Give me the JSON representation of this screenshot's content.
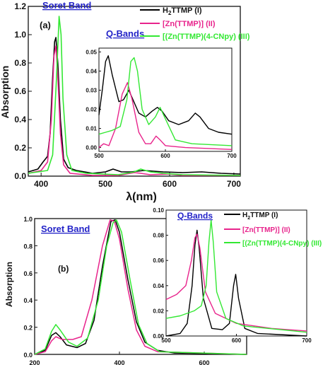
{
  "colors": {
    "black": "#000000",
    "magenta": "#e8248c",
    "green": "#33e833",
    "band_label": "#2323c8"
  },
  "panel_a": {
    "tag": "(a)",
    "soret_label": "Soret Band",
    "qbands_label": "Q-Bands",
    "legend": [
      {
        "prefix": "H",
        "sub": "2",
        "rest": "TTMP (I)",
        "color": "#000000"
      },
      {
        "text": "[Zn(TTMP)]  (II)",
        "color": "#e8248c"
      },
      {
        "text": "[(Zn(TTMP)(4-CNpy)  (III)",
        "color": "#33e833"
      }
    ]
  },
  "panel_b": {
    "tag": "(b)",
    "soret_label": "Soret Band",
    "qbands_label": "Q-Bands",
    "legend": [
      {
        "prefix": "H",
        "sub": "2",
        "rest": "TTMP (I)",
        "color": "#000000"
      },
      {
        "text": "[Zn(TTMP)]  (II)",
        "color": "#e8248c"
      },
      {
        "text": "[(Zn(TTMP)(4-CNpy)  (III)",
        "color": "#33e833"
      }
    ]
  },
  "chart_data": [
    {
      "id": "a-main",
      "type": "line",
      "xlabel": "λ(nm)",
      "ylabel": "Absorption",
      "xlim": [
        380,
        710
      ],
      "ylim": [
        0,
        1.2
      ],
      "xticks": [
        400,
        500,
        600,
        700
      ],
      "yticks": [
        0.0,
        0.2,
        0.4,
        0.6,
        0.8,
        1.0,
        1.2
      ],
      "ytick_labels": [
        "0.0",
        "0.2",
        "0.4",
        "0.6",
        "0.8",
        "1.0",
        "1.2"
      ],
      "series": [
        {
          "name": "H2TTMP (I)",
          "color": "#000000",
          "points": [
            [
              380,
              0.03
            ],
            [
              395,
              0.05
            ],
            [
              403,
              0.1
            ],
            [
              410,
              0.14
            ],
            [
              414,
              0.3
            ],
            [
              418,
              0.7
            ],
            [
              421,
              0.95
            ],
            [
              423,
              0.98
            ],
            [
              426,
              0.8
            ],
            [
              430,
              0.4
            ],
            [
              435,
              0.12
            ],
            [
              442,
              0.06
            ],
            [
              455,
              0.04
            ],
            [
              480,
              0.02
            ],
            [
              500,
              0.03
            ],
            [
              512,
              0.05
            ],
            [
              525,
              0.03
            ],
            [
              540,
              0.03
            ],
            [
              560,
              0.04
            ],
            [
              590,
              0.03
            ],
            [
              620,
              0.025
            ],
            [
              650,
              0.03
            ],
            [
              680,
              0.02
            ],
            [
              710,
              0.015
            ]
          ]
        },
        {
          "name": "[Zn(TTMP)] (II)",
          "color": "#e8248c",
          "points": [
            [
              380,
              0.02
            ],
            [
              400,
              0.04
            ],
            [
              410,
              0.1
            ],
            [
              416,
              0.4
            ],
            [
              420,
              0.85
            ],
            [
              423,
              0.92
            ],
            [
              426,
              0.7
            ],
            [
              430,
              0.3
            ],
            [
              435,
              0.08
            ],
            [
              445,
              0.02
            ],
            [
              480,
              0.005
            ],
            [
              520,
              0.005
            ],
            [
              545,
              0.025
            ],
            [
              555,
              0.02
            ],
            [
              570,
              0.01
            ],
            [
              600,
              0.015
            ],
            [
              620,
              0.005
            ],
            [
              710,
              0.005
            ]
          ]
        },
        {
          "name": "[(Zn(TTMP)(4-CNpy) (III)",
          "color": "#33e833",
          "points": [
            [
              380,
              0.02
            ],
            [
              410,
              0.04
            ],
            [
              418,
              0.15
            ],
            [
              424,
              0.7
            ],
            [
              428,
              1.13
            ],
            [
              431,
              1.0
            ],
            [
              434,
              0.55
            ],
            [
              440,
              0.15
            ],
            [
              448,
              0.04
            ],
            [
              470,
              0.02
            ],
            [
              520,
              0.01
            ],
            [
              545,
              0.03
            ],
            [
              555,
              0.05
            ],
            [
              570,
              0.03
            ],
            [
              590,
              0.02
            ],
            [
              620,
              0.01
            ],
            [
              710,
              0.005
            ]
          ]
        }
      ]
    },
    {
      "id": "a-inset",
      "type": "line",
      "xlim": [
        500,
        700
      ],
      "ylim": [
        -0.002,
        0.052
      ],
      "xticks": [
        500,
        600,
        700
      ],
      "yticks": [
        0.0,
        0.01,
        0.02,
        0.03,
        0.04,
        0.05
      ],
      "ytick_labels": [
        "0.00",
        "0.01",
        "0.02",
        "0.03",
        "0.04",
        "0.05"
      ],
      "series": [
        {
          "name": "H2TTMP (I)",
          "color": "#000000",
          "points": [
            [
              500,
              0.017
            ],
            [
              505,
              0.03
            ],
            [
              510,
              0.045
            ],
            [
              514,
              0.048
            ],
            [
              520,
              0.038
            ],
            [
              530,
              0.024
            ],
            [
              537,
              0.025
            ],
            [
              545,
              0.03
            ],
            [
              550,
              0.026
            ],
            [
              560,
              0.018
            ],
            [
              570,
              0.016
            ],
            [
              580,
              0.019
            ],
            [
              588,
              0.021
            ],
            [
              595,
              0.019
            ],
            [
              605,
              0.014
            ],
            [
              620,
              0.012
            ],
            [
              635,
              0.014
            ],
            [
              645,
              0.018
            ],
            [
              652,
              0.016
            ],
            [
              665,
              0.01
            ],
            [
              680,
              0.008
            ],
            [
              700,
              0.007
            ]
          ]
        },
        {
          "name": "[Zn(TTMP)] (II)",
          "color": "#e8248c",
          "points": [
            [
              500,
              0.0
            ],
            [
              507,
              0.002
            ],
            [
              515,
              0.001
            ],
            [
              525,
              0.01
            ],
            [
              535,
              0.028
            ],
            [
              543,
              0.034
            ],
            [
              550,
              0.025
            ],
            [
              560,
              0.008
            ],
            [
              570,
              0.002
            ],
            [
              578,
              0.002
            ],
            [
              586,
              0.006
            ],
            [
              592,
              0.004
            ],
            [
              600,
              0.001
            ],
            [
              630,
              0.0
            ],
            [
              700,
              -0.001
            ]
          ]
        },
        {
          "name": "[(Zn(TTMP)(4-CNpy) (III)",
          "color": "#33e833",
          "points": [
            [
              500,
              0.007
            ],
            [
              510,
              0.008
            ],
            [
              520,
              0.009
            ],
            [
              532,
              0.011
            ],
            [
              542,
              0.025
            ],
            [
              548,
              0.045
            ],
            [
              553,
              0.047
            ],
            [
              558,
              0.04
            ],
            [
              565,
              0.02
            ],
            [
              575,
              0.012
            ],
            [
              585,
              0.016
            ],
            [
              592,
              0.021
            ],
            [
              600,
              0.015
            ],
            [
              615,
              0.004
            ],
            [
              640,
              0.002
            ],
            [
              700,
              0.001
            ]
          ]
        }
      ]
    },
    {
      "id": "b-main",
      "type": "line",
      "ylabel": "Absorption",
      "xlim": [
        200,
        700
      ],
      "ylim": [
        0,
        1.0
      ],
      "xticks": [
        200,
        400,
        600
      ],
      "yticks": [
        0.0,
        0.2,
        0.4,
        0.6,
        0.8,
        1.0
      ],
      "ytick_labels": [
        "0.0",
        "0.2",
        "0.4",
        "0.6",
        "0.8",
        "1.0"
      ],
      "series": [
        {
          "name": "H2TTMP (I)",
          "color": "#000000",
          "points": [
            [
              200,
              0.0
            ],
            [
              225,
              0.03
            ],
            [
              240,
              0.14
            ],
            [
              250,
              0.16
            ],
            [
              260,
              0.13
            ],
            [
              275,
              0.07
            ],
            [
              300,
              0.05
            ],
            [
              320,
              0.08
            ],
            [
              340,
              0.25
            ],
            [
              360,
              0.65
            ],
            [
              380,
              0.98
            ],
            [
              390,
              0.99
            ],
            [
              400,
              0.9
            ],
            [
              420,
              0.55
            ],
            [
              440,
              0.24
            ],
            [
              460,
              0.09
            ],
            [
              490,
              0.03
            ],
            [
              530,
              0.01
            ],
            [
              700,
              0.0
            ]
          ]
        },
        {
          "name": "[Zn(TTMP)] (II)",
          "color": "#e8248c",
          "points": [
            [
              200,
              0.0
            ],
            [
              225,
              0.02
            ],
            [
              240,
              0.1
            ],
            [
              250,
              0.13
            ],
            [
              265,
              0.11
            ],
            [
              290,
              0.11
            ],
            [
              310,
              0.13
            ],
            [
              335,
              0.4
            ],
            [
              360,
              0.8
            ],
            [
              378,
              0.99
            ],
            [
              388,
              0.98
            ],
            [
              400,
              0.85
            ],
            [
              420,
              0.48
            ],
            [
              440,
              0.18
            ],
            [
              460,
              0.06
            ],
            [
              490,
              0.02
            ],
            [
              700,
              0.0
            ]
          ]
        },
        {
          "name": "[(Zn(TTMP)(4-CNpy) (III)",
          "color": "#33e833",
          "points": [
            [
              200,
              0.0
            ],
            [
              225,
              0.04
            ],
            [
              240,
              0.17
            ],
            [
              250,
              0.22
            ],
            [
              260,
              0.18
            ],
            [
              280,
              0.09
            ],
            [
              300,
              0.06
            ],
            [
              325,
              0.12
            ],
            [
              350,
              0.4
            ],
            [
              370,
              0.8
            ],
            [
              385,
              0.97
            ],
            [
              393,
              0.99
            ],
            [
              405,
              0.9
            ],
            [
              425,
              0.55
            ],
            [
              445,
              0.22
            ],
            [
              465,
              0.08
            ],
            [
              495,
              0.02
            ],
            [
              700,
              0.0
            ]
          ]
        }
      ]
    },
    {
      "id": "b-inset",
      "type": "line",
      "xlim": [
        500,
        700
      ],
      "ylim": [
        0,
        0.1
      ],
      "xticks": [
        500,
        600,
        700
      ],
      "yticks": [
        0.0,
        0.02,
        0.04,
        0.06,
        0.08,
        0.1
      ],
      "ytick_labels": [
        "0.00",
        "0.02",
        "0.04",
        "0.06",
        "0.08",
        "0.10"
      ],
      "series": [
        {
          "name": "H2TTMP (I)",
          "color": "#000000",
          "points": [
            [
              500,
              0.0
            ],
            [
              520,
              0.002
            ],
            [
              530,
              0.01
            ],
            [
              537,
              0.04
            ],
            [
              541,
              0.072
            ],
            [
              544,
              0.084
            ],
            [
              547,
              0.07
            ],
            [
              553,
              0.03
            ],
            [
              565,
              0.006
            ],
            [
              580,
              0.005
            ],
            [
              590,
              0.01
            ],
            [
              596,
              0.04
            ],
            [
              599,
              0.049
            ],
            [
              603,
              0.03
            ],
            [
              612,
              0.006
            ],
            [
              630,
              0.002
            ],
            [
              700,
              0.0
            ]
          ]
        },
        {
          "name": "[Zn(TTMP)] (II)",
          "color": "#e8248c",
          "points": [
            [
              500,
              0.029
            ],
            [
              515,
              0.033
            ],
            [
              528,
              0.04
            ],
            [
              536,
              0.06
            ],
            [
              541,
              0.078
            ],
            [
              544,
              0.081
            ],
            [
              548,
              0.07
            ],
            [
              556,
              0.035
            ],
            [
              570,
              0.018
            ],
            [
              600,
              0.01
            ],
            [
              650,
              0.006
            ],
            [
              700,
              0.004
            ]
          ]
        },
        {
          "name": "[(Zn(TTMP)(4-CNpy) (III)",
          "color": "#33e833",
          "points": [
            [
              500,
              0.014
            ],
            [
              520,
              0.016
            ],
            [
              540,
              0.02
            ],
            [
              550,
              0.024
            ],
            [
              557,
              0.04
            ],
            [
              561,
              0.075
            ],
            [
              564,
              0.092
            ],
            [
              567,
              0.075
            ],
            [
              572,
              0.035
            ],
            [
              585,
              0.014
            ],
            [
              610,
              0.008
            ],
            [
              700,
              0.003
            ]
          ]
        }
      ]
    }
  ]
}
